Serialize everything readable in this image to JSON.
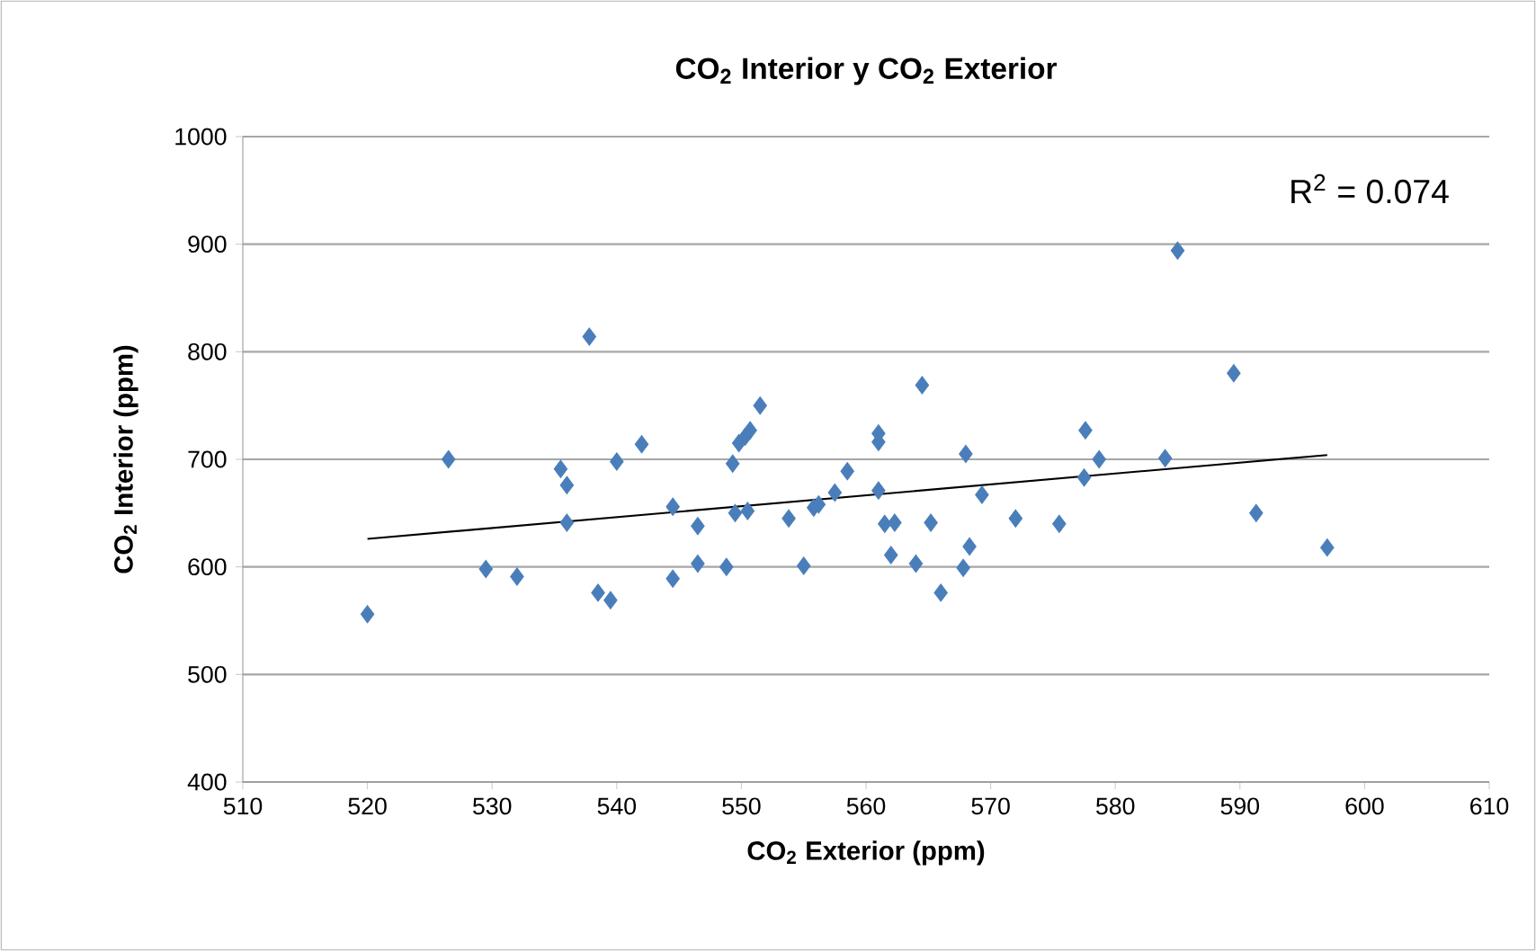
{
  "chart_data": {
    "type": "scatter",
    "title": "CO$_{2}$ Interior y CO$_{2}$ Exterior",
    "xlabel": "CO$_{2}$ Exterior (ppm)",
    "ylabel": "CO$_{2}$ Interior (ppm)",
    "annotations": [
      "R$^{2}$ = 0.074"
    ],
    "xlim": [
      510,
      610
    ],
    "xticks": [
      510,
      520,
      530,
      540,
      550,
      560,
      570,
      580,
      590,
      600,
      610
    ],
    "ylim": [
      400,
      1000
    ],
    "yticks": [
      400,
      500,
      600,
      700,
      800,
      900,
      1000
    ],
    "grid": "y",
    "marker": "diamond",
    "series": [
      {
        "color": "#4a7ebb",
        "x": [
          520,
          526.5,
          529.5,
          532,
          535.5,
          536,
          536,
          537.8,
          538.5,
          539.5,
          540,
          542,
          544.5,
          544.5,
          546.5,
          546.5,
          548.8,
          549.3,
          549.5,
          549.8,
          550.3,
          550.5,
          550.7,
          551.5,
          553.8,
          555,
          555.8,
          556.2,
          557.5,
          558.5,
          561,
          561,
          561,
          561.5,
          562,
          562.3,
          564,
          564.5,
          565.2,
          566,
          567.8,
          568,
          568.3,
          569.3,
          572,
          575.5,
          577.5,
          577.6,
          578.7,
          584,
          585,
          589.5,
          591.3,
          597
        ],
        "values": [
          556,
          700,
          598,
          591,
          691,
          676,
          641,
          814,
          576,
          569,
          698,
          714,
          589,
          656,
          603,
          638,
          600,
          696,
          650,
          715,
          721,
          652,
          727,
          750,
          645,
          601,
          655,
          658,
          669,
          689,
          671,
          716,
          724,
          640,
          611,
          641,
          603,
          769,
          641,
          576,
          599,
          705,
          619,
          667,
          645,
          640,
          683,
          727,
          700,
          701,
          894,
          780,
          650,
          618
        ]
      },
      {
        "type": "line",
        "marker": "none",
        "color": "#000000",
        "x": [
          520,
          597
        ],
        "values": [
          626,
          704
        ]
      }
    ]
  }
}
